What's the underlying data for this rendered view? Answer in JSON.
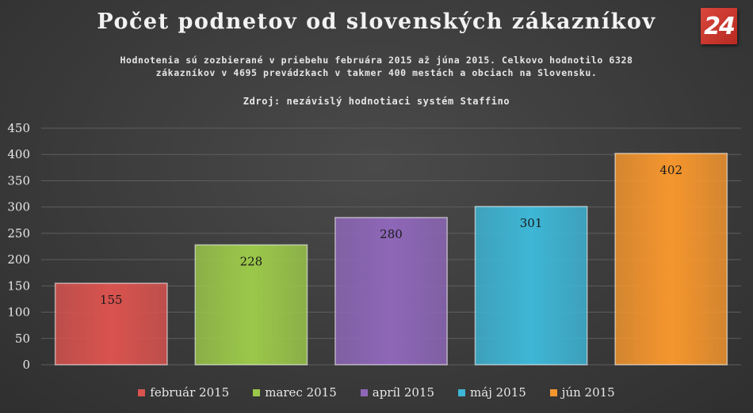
{
  "title": "Počet podnetov od slovenských zákazníkov",
  "subtitle_line1": "Hodnotenia sú zozbierané v priebehu februára 2015 až júna 2015. Celkovo hodnotilo 6328",
  "subtitle_line2": "zákazníkov v 4695 prevádzkach v takmer 400 mestách a obciach na Slovensku.",
  "source": "Zdroj: nezávislý hodnotiaci systém Staffino",
  "logo_text": "24",
  "chart_data": {
    "type": "bar",
    "categories": [
      "február 2015",
      "marec 2015",
      "apríl 2015",
      "máj 2015",
      "jún 2015"
    ],
    "values": [
      155,
      228,
      280,
      301,
      402
    ],
    "colors": [
      "#d9534f",
      "#9bc84a",
      "#8e67b8",
      "#3eb6d6",
      "#f5962e"
    ],
    "ylim": [
      0,
      450
    ],
    "yticks": [
      0,
      50,
      100,
      150,
      200,
      250,
      300,
      350,
      400,
      450
    ],
    "grid": true,
    "legend_position": "bottom",
    "data_labels": true
  }
}
